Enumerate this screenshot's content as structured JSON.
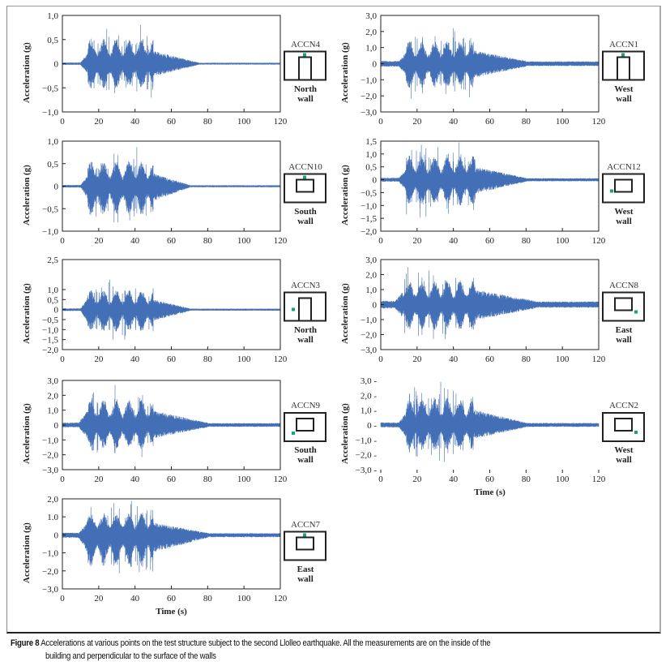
{
  "figure": {
    "caption_label": "Figure 8",
    "caption_line1": "Accelerations at various points on the test structure subject to the second Llolleo earthquake. All the measurements are on the inside of the",
    "caption_line2": "building and perpendicular to the surface of the walls",
    "wave_color": "#2f5fae",
    "sensor_marker_color": "#1aa37a"
  },
  "chart_data": [
    {
      "type": "line",
      "id": "ACCN4",
      "sensor": "ACCN4",
      "wall": [
        "North",
        "wall"
      ],
      "ylabel": "Acceleration (g)",
      "xlabel": "",
      "ylim": [
        -1.0,
        1.0
      ],
      "yticks": [
        "1,0",
        "0,5",
        "0",
        "−0,5",
        "−1,0"
      ],
      "ytick_values": [
        1.0,
        0.5,
        0,
        -0.5,
        -1.0
      ],
      "xlim": [
        0,
        120
      ],
      "xticks": [
        "0",
        "20",
        "40",
        "60",
        "80",
        "100",
        "120"
      ],
      "envelope": {
        "onset_s": 10,
        "strong_start_s": 14,
        "strong_end_s": 50,
        "decay_end_s": 75,
        "peak_pos": 0.8,
        "peak_neg": -0.8,
        "peak_time_s": 43,
        "baseline": 0.03
      },
      "plan": "north",
      "marker": "top-center"
    },
    {
      "type": "line",
      "id": "ACCN1",
      "sensor": "ACCN1",
      "wall": [
        "West",
        "wall"
      ],
      "ylabel": "Acceleration (g)",
      "xlabel": "",
      "ylim": [
        -3.0,
        3.0
      ],
      "yticks": [
        "3,0",
        "2,0",
        "1,0",
        "0",
        "−1,0",
        "−2,0",
        "−3,0"
      ],
      "ytick_values": [
        3,
        2,
        1,
        0,
        -1,
        -2,
        -3
      ],
      "xlim": [
        0,
        120
      ],
      "xticks": [
        "0",
        "20",
        "40",
        "60",
        "80",
        "100",
        "120"
      ],
      "envelope": {
        "onset_s": 10,
        "strong_start_s": 14,
        "strong_end_s": 51,
        "decay_end_s": 80,
        "peak_pos": 2.2,
        "peak_neg": -2.3,
        "peak_time_s": 40,
        "baseline": 0.08
      },
      "plan": "north",
      "marker": "top-center"
    },
    {
      "type": "line",
      "id": "ACCN10",
      "sensor": "ACCN10",
      "wall": [
        "South",
        "wall"
      ],
      "ylabel": "Acceleration (g)",
      "xlabel": "",
      "ylim": [
        -1.0,
        1.0
      ],
      "yticks": [
        "1,0",
        "0,5",
        "0",
        "−0,5",
        "−1,0"
      ],
      "ytick_values": [
        1.0,
        0.5,
        0,
        -0.5,
        -1.0
      ],
      "xlim": [
        0,
        120
      ],
      "xticks": [
        "0",
        "20",
        "40",
        "60",
        "80",
        "100",
        "120"
      ],
      "envelope": {
        "onset_s": 10,
        "strong_start_s": 14,
        "strong_end_s": 50,
        "decay_end_s": 70,
        "peak_pos": 0.87,
        "peak_neg": -1.0,
        "peak_time_s": 41,
        "baseline": 0.03
      },
      "plan": "south",
      "marker": "top-center"
    },
    {
      "type": "line",
      "id": "ACCN12",
      "sensor": "ACCN12",
      "wall": [
        "West",
        "wall"
      ],
      "ylabel": "Acceleration (g)",
      "xlabel": "",
      "ylim": [
        -2.0,
        1.5
      ],
      "yticks": [
        "1,5",
        "1,0",
        "0,5",
        "0",
        "−0,5",
        "−1,0",
        "−1,5",
        "−2,0"
      ],
      "ytick_values": [
        1.5,
        1.0,
        0.5,
        0,
        -0.5,
        -1.0,
        -1.5,
        -2.0
      ],
      "xlim": [
        0,
        120
      ],
      "xticks": [
        "0",
        "20",
        "40",
        "60",
        "80",
        "100",
        "120"
      ],
      "envelope": {
        "onset_s": 10,
        "strong_start_s": 14,
        "strong_end_s": 52,
        "decay_end_s": 80,
        "peak_pos": 1.45,
        "peak_neg": -1.55,
        "peak_time_s": 43,
        "baseline": 0.05
      },
      "plan": "south",
      "marker": "left-mid"
    },
    {
      "type": "line",
      "id": "ACCN3",
      "sensor": "ACCN3",
      "wall": [
        "North",
        "wall"
      ],
      "ylabel": "Acceleration (g)",
      "xlabel": "",
      "ylim": [
        -2.0,
        2.5
      ],
      "yticks": [
        "2,5",
        "1,0",
        "0,5",
        "0",
        "−0,5",
        "−1,0",
        "−1,5",
        "−2,0"
      ],
      "ytick_values": [
        2.5,
        1.0,
        0.5,
        0,
        -0.5,
        -1.0,
        -1.5,
        -2.0
      ],
      "xlim": [
        0,
        120
      ],
      "xticks": [
        "0",
        "20",
        "40",
        "60",
        "80",
        "100",
        "120"
      ],
      "envelope": {
        "onset_s": 10,
        "strong_start_s": 13,
        "strong_end_s": 50,
        "decay_end_s": 70,
        "peak_pos": 1.5,
        "peak_neg": -1.7,
        "peak_time_s": 26,
        "baseline": 0.04
      },
      "plan": "north",
      "marker": "left-mid"
    },
    {
      "type": "line",
      "id": "ACCN8",
      "sensor": "ACCN8",
      "wall": [
        "East",
        "wall"
      ],
      "ylabel": "Acceleration (g)",
      "xlabel": "",
      "ylim": [
        -3.0,
        3.0
      ],
      "yticks": [
        "3,0",
        "2,0",
        "1,0",
        "0",
        "−1,0",
        "−2,0",
        "−3,0"
      ],
      "ytick_values": [
        3,
        2,
        1,
        0,
        -1,
        -2,
        -3
      ],
      "xlim": [
        0,
        120
      ],
      "xticks": [
        "0",
        "20",
        "40",
        "60",
        "80",
        "100",
        "120"
      ],
      "envelope": {
        "onset_s": 8,
        "strong_start_s": 12,
        "strong_end_s": 52,
        "decay_end_s": 85,
        "peak_pos": 2.5,
        "peak_neg": -2.6,
        "peak_time_s": 15,
        "baseline": 0.1
      },
      "plan": "south",
      "marker": "right-low"
    },
    {
      "type": "line",
      "id": "ACCN9",
      "sensor": "ACCN9",
      "wall": [
        "South",
        "wall"
      ],
      "ylabel": "Acceleration (g)",
      "xlabel": "",
      "ylim": [
        -3.0,
        3.0
      ],
      "yticks": [
        "3,0",
        "2,0",
        "1,0",
        "0",
        "−1,0",
        "−2,0",
        "−3,0"
      ],
      "ytick_values": [
        3,
        2,
        1,
        0,
        -1,
        -2,
        -3
      ],
      "xlim": [
        0,
        120
      ],
      "xticks": [
        "0",
        "20",
        "40",
        "60",
        "80",
        "100",
        "120"
      ],
      "envelope": {
        "onset_s": 9,
        "strong_start_s": 13,
        "strong_end_s": 50,
        "decay_end_s": 80,
        "peak_pos": 2.7,
        "peak_neg": -2.5,
        "peak_time_s": 29,
        "baseline": 0.06
      },
      "plan": "south",
      "marker": "left-low"
    },
    {
      "type": "line",
      "id": "ACCN2",
      "sensor": "ACCN2",
      "wall": [
        "West",
        "wall"
      ],
      "ylabel": "Acceleration (g)",
      "xlabel": "Time (s)",
      "ylim": [
        -3.0,
        3.0
      ],
      "yticks": [
        "3,0 -",
        "2,0 -",
        "1,0 -",
        "0 -",
        "−1,0 -",
        "−2,0 -",
        "−3,0 -"
      ],
      "ytick_values": [
        3,
        2,
        1,
        0,
        -1,
        -2,
        -3
      ],
      "xlim": [
        0,
        120
      ],
      "xticks": [
        "0",
        "20",
        "40",
        "60",
        "80",
        "100",
        "120"
      ],
      "envelope": {
        "onset_s": 10,
        "strong_start_s": 14,
        "strong_end_s": 51,
        "decay_end_s": 80,
        "peak_pos": 2.9,
        "peak_neg": -2.6,
        "peak_time_s": 33,
        "baseline": 0.06
      },
      "plan": "south",
      "marker": "right-low",
      "frameless": true
    },
    {
      "type": "line",
      "id": "ACCN7",
      "sensor": "ACCN7",
      "wall": [
        "East",
        "wall"
      ],
      "ylabel": "Acceleration (g)",
      "xlabel": "Time (s)",
      "ylim": [
        -3.0,
        2.0
      ],
      "yticks": [
        "2,0",
        "1.0",
        "0",
        "−1,0",
        "−2,0",
        "−3,0"
      ],
      "ytick_values": [
        2,
        1,
        0,
        -1,
        -2,
        -3
      ],
      "xlim": [
        0,
        120
      ],
      "xticks": [
        "0",
        "20",
        "40",
        "60",
        "80",
        "100",
        "120"
      ],
      "envelope": {
        "onset_s": 9,
        "strong_start_s": 13,
        "strong_end_s": 50,
        "decay_end_s": 80,
        "peak_pos": 1.9,
        "peak_neg": -2.7,
        "peak_time_s": 38,
        "baseline": 0.06
      },
      "plan": "south",
      "marker": "top-center"
    }
  ]
}
